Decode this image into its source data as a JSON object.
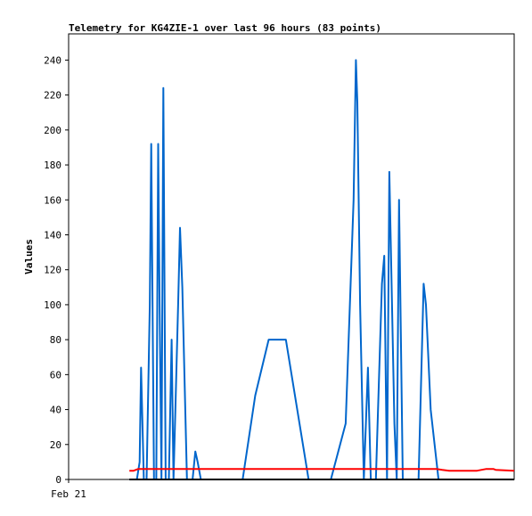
{
  "chart_data": {
    "type": "line",
    "title": "Telemetry for KG4ZIE-1 over last 96 hours (83 points)",
    "xlabel": "",
    "ylabel": "Values",
    "x_tick_labels": [
      "Feb 21"
    ],
    "ylim": [
      0,
      255
    ],
    "y_ticks": [
      0,
      20,
      40,
      60,
      80,
      100,
      120,
      140,
      160,
      180,
      200,
      220,
      240
    ],
    "xlim": [
      0,
      96
    ],
    "grid": false,
    "legend": "none",
    "series": [
      {
        "color": "#0066cc",
        "points": [
          [
            13.1,
            0
          ],
          [
            14.7,
            0
          ],
          [
            15.3,
            10
          ],
          [
            15.6,
            64
          ],
          [
            16.2,
            0
          ],
          [
            16.8,
            0
          ],
          [
            17.5,
            100
          ],
          [
            17.8,
            192
          ],
          [
            18.4,
            0
          ],
          [
            18.9,
            0
          ],
          [
            19.3,
            192
          ],
          [
            19.6,
            100
          ],
          [
            20.0,
            0
          ],
          [
            20.4,
            224
          ],
          [
            20.9,
            0
          ],
          [
            21.6,
            0
          ],
          [
            22.2,
            80
          ],
          [
            22.6,
            0
          ],
          [
            23.0,
            40
          ],
          [
            23.6,
            100
          ],
          [
            24.0,
            144
          ],
          [
            24.5,
            110
          ],
          [
            25.5,
            0
          ],
          [
            26.7,
            0
          ],
          [
            27.3,
            16
          ],
          [
            27.8,
            10
          ],
          [
            28.5,
            0
          ],
          [
            37.5,
            0
          ],
          [
            40.2,
            48
          ],
          [
            43.1,
            80
          ],
          [
            46.8,
            80
          ],
          [
            51.7,
            0
          ],
          [
            56.5,
            0
          ],
          [
            59.7,
            32
          ],
          [
            61.4,
            160
          ],
          [
            61.9,
            240
          ],
          [
            62.2,
            216
          ],
          [
            62.8,
            100
          ],
          [
            63.6,
            0
          ],
          [
            64.5,
            64
          ],
          [
            65.1,
            0
          ],
          [
            66.2,
            0
          ],
          [
            67.5,
            112
          ],
          [
            68.0,
            128
          ],
          [
            68.6,
            0
          ],
          [
            69.1,
            176
          ],
          [
            70.2,
            32
          ],
          [
            70.7,
            0
          ],
          [
            71.2,
            160
          ],
          [
            72.0,
            0
          ],
          [
            73.5,
            0
          ],
          [
            75.4,
            0
          ],
          [
            76.5,
            112
          ],
          [
            77.0,
            100
          ],
          [
            78.0,
            40
          ],
          [
            79.7,
            0
          ],
          [
            81.0,
            0
          ]
        ]
      },
      {
        "color": "#ff0000",
        "points": [
          [
            13.1,
            5
          ],
          [
            14.0,
            5
          ],
          [
            15.0,
            6
          ],
          [
            30.0,
            6
          ],
          [
            50.0,
            6
          ],
          [
            70.0,
            6
          ],
          [
            79.3,
            6
          ],
          [
            80.5,
            5.5
          ],
          [
            82.0,
            5
          ],
          [
            88.0,
            5
          ],
          [
            90.0,
            6
          ],
          [
            91.5,
            6
          ],
          [
            92.0,
            5.5
          ],
          [
            96.0,
            5
          ]
        ]
      },
      {
        "color": "#000000",
        "points": [
          [
            13.1,
            0
          ],
          [
            96.0,
            0
          ]
        ]
      }
    ]
  }
}
